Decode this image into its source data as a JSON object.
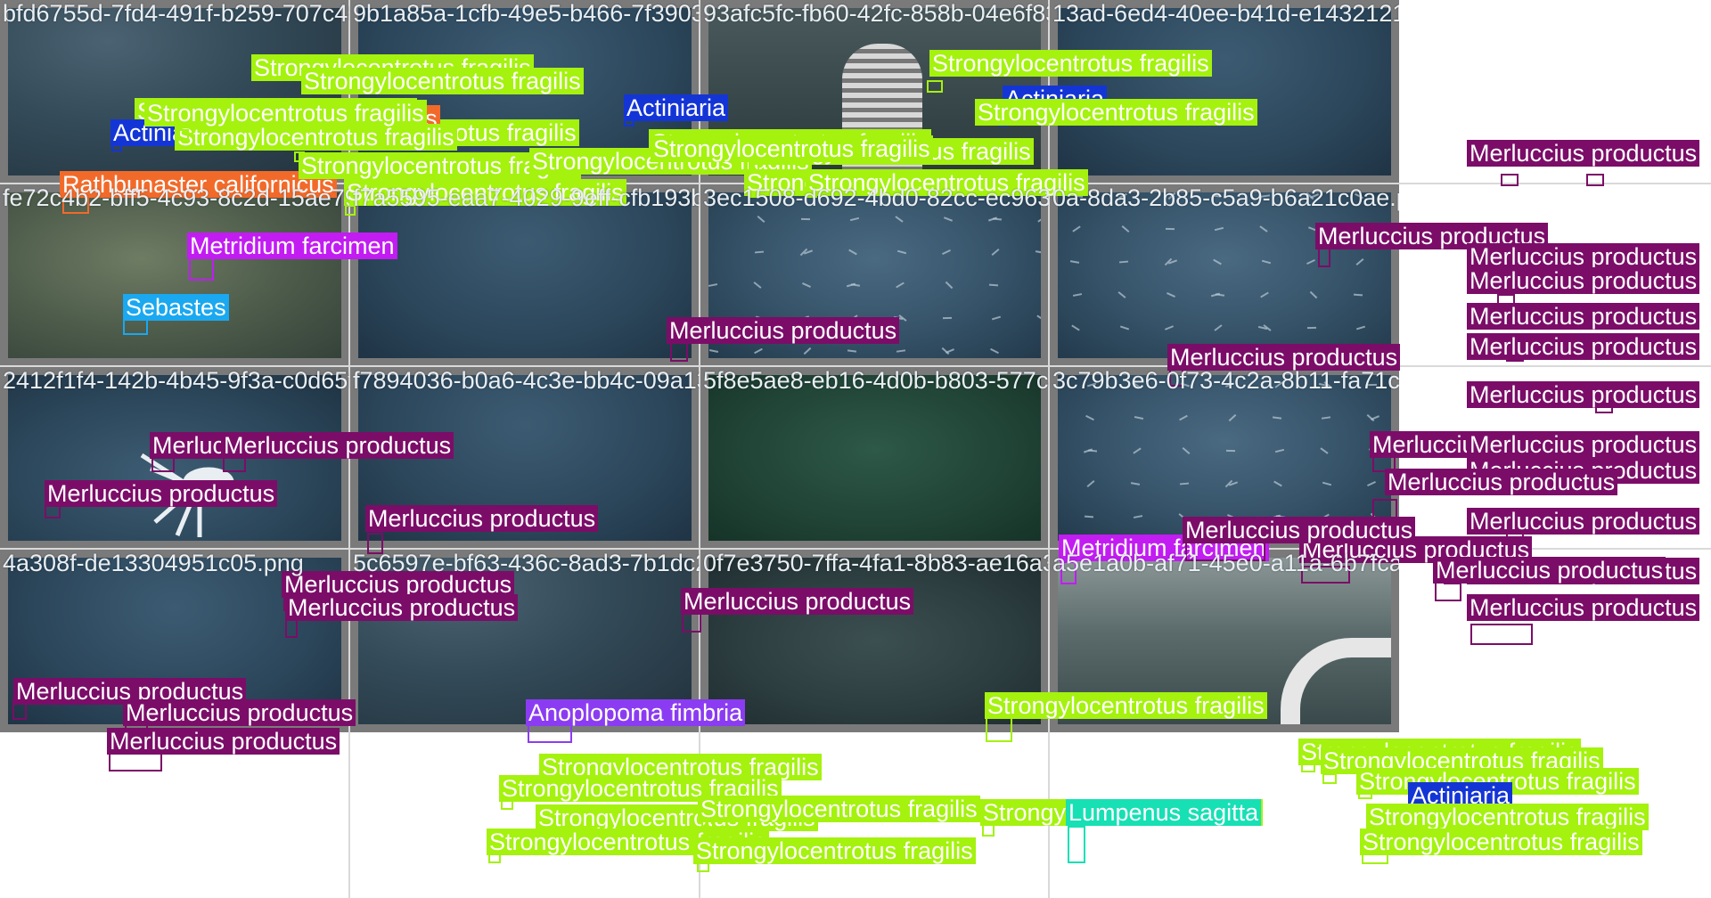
{
  "colors": {
    "Strongylocentrotus fragilis": "#a4f20e",
    "Merluccius productus": "#7b0d68",
    "Actiniaria": "#1435d6",
    "Rathbunaster californicus": "#f26a2a",
    "Metridium farcimen": "#c21cf2",
    "Sebastes": "#1aa8f0",
    "Anoplopoma fimbria": "#8b3cf2",
    "Lumpenus sagitta": "#17e0b4"
  },
  "tiles": [
    {
      "filename": "bfd6755d-7fd4-491f-b259-707c483df45b.png",
      "scene": "rocky"
    },
    {
      "filename": "9b1a85a-1cfb-49e5-b466-7f3903ae9238.png",
      "scene": "blue"
    },
    {
      "filename": "93afc5fc-fb60-42fc-858b-04e6f83d4470.png",
      "scene": "equipment"
    },
    {
      "filename": "13ad-6ed4-40ee-b41d-e14321212.png",
      "scene": "blue"
    },
    {
      "filename": "fe72c4b2-bff5-4c93-8c2d-15ae794585.png",
      "scene": "sand"
    },
    {
      "filename": "f7a5595-eaa7-4029-9eff-cfb193bea373.png",
      "scene": "blue"
    },
    {
      "filename": "3ec1508-d692-4bd0-82cc-ec9637c3e2.png",
      "scene": "school"
    },
    {
      "filename": "0a-8da3-2b85-c5a9-b6a21c0ae.png",
      "scene": "school"
    },
    {
      "filename": "2412f1f4-142b-4b45-9f3a-c0d65f18407894d.png",
      "scene": "squid"
    },
    {
      "filename": "f7894036-b0a6-4c3e-bb4c-09a13e62d84e.png",
      "scene": "blue"
    },
    {
      "filename": "5f8e5ae8-eb16-4d0b-b803-577c4a64a57b.png",
      "scene": "green"
    },
    {
      "filename": "3c79b3e6-0f73-4c2a-8b11-fa71c.png",
      "scene": "school"
    },
    {
      "filename": "4a308f-de13304951c05.png",
      "scene": "blue"
    },
    {
      "filename": "5c6597e-bf63-436c-8ad3-7b1dc26c03.png",
      "scene": "rocky"
    },
    {
      "filename": "0f7e3750-7ffa-4fa1-8b83-ae16a3bc1505.png",
      "scene": "murky"
    },
    {
      "filename": "a5e1a0b-af71-45e0-a11a-6b7fcacb.png",
      "scene": "equipment2"
    }
  ],
  "detections": [
    {
      "label": "Strongylocentrotus fragilis"
    },
    {
      "label": "Strongylocentrotus fragilis"
    },
    {
      "label": "Strongylocentrotus fragilis"
    },
    {
      "label": "Strongylocentrotus fragilis"
    },
    {
      "label": "Rathbunaster californicus"
    },
    {
      "label": "Actiniaria"
    },
    {
      "label": "Strongylocentrotus fragilis"
    },
    {
      "label": "Strongylocentrotus fragilis"
    },
    {
      "label": "Rathbunaster californicus"
    },
    {
      "label": "Strongylocentrotus fragilis"
    },
    {
      "label": "Strongylocentrotus fragilis"
    },
    {
      "label": "Actiniaria"
    },
    {
      "label": "Strongylocentrotus fragilis"
    },
    {
      "label": "Strongylocentrotus fragilis"
    },
    {
      "label": "Strongylocentrotus fragilis"
    },
    {
      "label": "Strongylocentrotus fragilis"
    },
    {
      "label": "Strongylocentrotus fragilis"
    },
    {
      "label": "Actiniaria"
    },
    {
      "label": "Strongylocentrotus fragilis"
    },
    {
      "label": "Strongylocentrotus fragilis"
    },
    {
      "label": "Strongylocentrotus fragilis"
    },
    {
      "label": "Merluccius productus"
    },
    {
      "label": "Merluccius productus"
    },
    {
      "label": "Metridium farcimen"
    },
    {
      "label": "Sebastes"
    },
    {
      "label": "Merluccius productus"
    },
    {
      "label": "Merluccius productus"
    },
    {
      "label": "Merluccius productus"
    },
    {
      "label": "Merluccius productus"
    },
    {
      "label": "Merluccius productus"
    },
    {
      "label": "Merluccius productus"
    },
    {
      "label": "Merluccius productus"
    },
    {
      "label": "Merluccius productus"
    },
    {
      "label": "Merluccius productus"
    },
    {
      "label": "Merluccius productus"
    },
    {
      "label": "Merluccius productus"
    },
    {
      "label": "Merluccius productus"
    },
    {
      "label": "Merluccius productus"
    },
    {
      "label": "Merluccius productus"
    },
    {
      "label": "Merluccius productus"
    },
    {
      "label": "Merluccius productus"
    },
    {
      "label": "Metridium farcimen"
    },
    {
      "label": "Merluccius productus"
    },
    {
      "label": "Merluccius productus"
    },
    {
      "label": "Merluccius productus"
    },
    {
      "label": "Merluccius productus"
    },
    {
      "label": "Merluccius productus"
    },
    {
      "label": "Merluccius productus"
    },
    {
      "label": "Merluccius productus"
    },
    {
      "label": "Merluccius productus"
    },
    {
      "label": "Merluccius productus"
    },
    {
      "label": "Merluccius productus"
    },
    {
      "label": "Merluccius productus"
    },
    {
      "label": "Merluccius productus"
    },
    {
      "label": "Anoplopoma fimbria"
    },
    {
      "label": "Strongylocentrotus fragilis"
    },
    {
      "label": "Strongylocentrotus fragilis"
    },
    {
      "label": "Strongylocentrotus fragilis"
    },
    {
      "label": "Strongylocentrotus fragilis"
    },
    {
      "label": "Strongylocentrotus fragilis"
    },
    {
      "label": "Strongylocentrotus fragilis"
    },
    {
      "label": "Strongylocentrotus fragilis"
    },
    {
      "label": "Strongylocentrotus fragilis"
    },
    {
      "label": "Lumpenus sagitta"
    },
    {
      "label": "Strongylocentrotus fragilis"
    },
    {
      "label": "Strongylocentrotus fragilis"
    },
    {
      "label": "Strongylocentrotus fragilis"
    },
    {
      "label": "Actiniaria"
    },
    {
      "label": "Strongylocentrotus fragilis"
    },
    {
      "label": "Strongylocentrotus fragilis"
    }
  ]
}
